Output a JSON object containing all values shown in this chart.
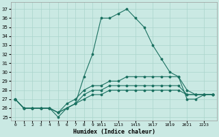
{
  "xlabel": "Humidex (Indice chaleur)",
  "xlim": [
    -0.5,
    23.5
  ],
  "ylim": [
    24.6,
    37.8
  ],
  "yticks": [
    25,
    26,
    27,
    28,
    29,
    30,
    31,
    32,
    33,
    34,
    35,
    36,
    37
  ],
  "bg_color": "#cae9e3",
  "line_color": "#1a7060",
  "grid_color": "#aad4cc",
  "x": [
    0,
    1,
    2,
    3,
    4,
    5,
    6,
    7,
    8,
    9,
    10,
    11,
    12,
    13,
    14,
    15,
    16,
    17,
    18,
    19,
    20,
    21,
    22,
    23
  ],
  "xtick_positions": [
    0,
    1,
    2,
    3,
    4,
    5,
    6,
    7,
    8,
    9,
    10,
    12,
    14,
    16,
    18,
    20,
    22
  ],
  "xtick_labels": [
    "0",
    "1",
    "2",
    "3",
    "4",
    "5",
    "6",
    "7",
    "8",
    "9",
    "1011",
    "1213",
    "1415",
    "1617",
    "1819",
    "2021",
    "2223"
  ],
  "lines": [
    [
      27,
      26,
      26,
      26,
      26,
      25,
      26,
      26.5,
      29.5,
      32,
      36,
      36,
      36.5,
      37,
      36,
      35,
      33,
      31.5,
      30,
      29.5,
      27,
      27,
      27.5,
      27.5
    ],
    [
      27,
      26,
      26,
      26,
      26,
      25.5,
      26.5,
      27,
      28,
      28.5,
      28.5,
      29,
      29,
      29.5,
      29.5,
      29.5,
      29.5,
      29.5,
      29.5,
      29.5,
      28,
      27.5,
      27.5,
      27.5
    ],
    [
      27,
      26,
      26,
      26,
      26,
      25.5,
      26,
      26.5,
      27.5,
      28,
      28,
      28.5,
      28.5,
      28.5,
      28.5,
      28.5,
      28.5,
      28.5,
      28.5,
      28.5,
      27.5,
      27.5,
      27.5,
      27.5
    ],
    [
      27,
      26,
      26,
      26,
      26,
      25.5,
      26,
      26.5,
      27,
      27.5,
      27.5,
      28,
      28,
      28,
      28,
      28,
      28,
      28,
      28,
      28,
      27.5,
      27.5,
      27.5,
      27.5
    ]
  ]
}
